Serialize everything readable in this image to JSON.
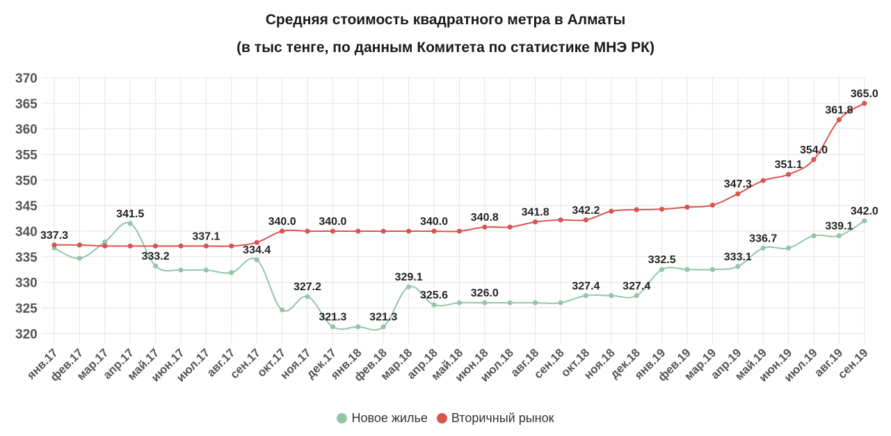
{
  "chart_data": {
    "type": "line",
    "title": "Средняя стоимость квадратного метра в Алматы",
    "subtitle": "(в тыс тенге, по данным Комитета по статистике МНЭ РК)",
    "categories": [
      "янв.17",
      "фев.17",
      "мар.17",
      "апр.17",
      "май.17",
      "июн.17",
      "июл.17",
      "авг.17",
      "сен.17",
      "окт.17",
      "ноя.17",
      "дек.17",
      "янв.18",
      "фев.18",
      "мар.18",
      "апр.18",
      "май.18",
      "июн.18",
      "июл.18",
      "авг.18",
      "сен.18",
      "окт.18",
      "ноя.18",
      "дек.18",
      "янв.19",
      "фев.19",
      "мар.19",
      "апр.19",
      "май.19",
      "июн.19",
      "июл.19",
      "авг.19",
      "сен.19"
    ],
    "ylim": [
      318,
      370
    ],
    "yticks": [
      320,
      325,
      330,
      335,
      340,
      345,
      350,
      355,
      360,
      365,
      370
    ],
    "grid": true,
    "legend_position": "bottom",
    "series": [
      {
        "name": "Новое жилье",
        "color": "#93c5a8",
        "values": [
          336.7,
          334.7,
          337.9,
          341.5,
          333.2,
          332.4,
          332.4,
          331.9,
          334.4,
          324.6,
          327.2,
          321.3,
          321.3,
          321.3,
          329.1,
          325.6,
          326.0,
          326.0,
          326.0,
          326.0,
          326.0,
          327.4,
          327.4,
          327.4,
          332.5,
          332.5,
          332.5,
          333.1,
          336.7,
          336.7,
          339.1,
          339.1,
          342.0
        ],
        "labels": {
          "0": "",
          "3": "341.5",
          "4": "333.2",
          "8": "334.4",
          "10": "327.2",
          "11": "321.3",
          "13": "321.3",
          "14": "329.1",
          "15": "325.6",
          "17": "326.0",
          "21": "327.4",
          "23": "327.4",
          "24": "332.5",
          "27": "333.1",
          "28": "336.7",
          "31": "339.1",
          "32": "342.0"
        }
      },
      {
        "name": "Вторичный рынок",
        "color": "#d9534f",
        "values": [
          337.3,
          337.3,
          337.1,
          337.1,
          337.1,
          337.1,
          337.1,
          337.1,
          337.8,
          340.0,
          340.0,
          340.0,
          340.0,
          340.0,
          340.0,
          340.0,
          340.0,
          340.8,
          340.8,
          341.8,
          342.2,
          342.2,
          343.9,
          344.2,
          344.3,
          344.7,
          345.1,
          347.3,
          349.9,
          351.1,
          354.0,
          361.8,
          365.0
        ],
        "labels": {
          "0": "337.3",
          "6": "337.1",
          "9": "340.0",
          "11": "340.0",
          "15": "340.0",
          "17": "340.8",
          "19": "341.8",
          "21": "342.2",
          "27": "347.3",
          "29": "351.1",
          "30": "354.0",
          "31": "361.8",
          "32": "365.0"
        }
      }
    ]
  }
}
